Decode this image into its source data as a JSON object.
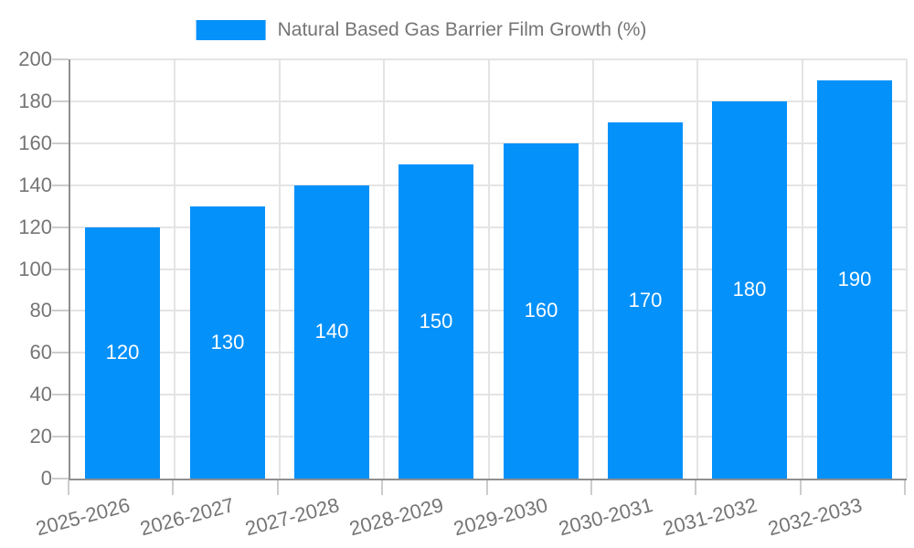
{
  "chart_data": {
    "type": "bar",
    "title": "Natural Based Gas Barrier Film Growth (%)",
    "categories": [
      "2025-2026",
      "2026-2027",
      "2027-2028",
      "2028-2029",
      "2029-2030",
      "2030-2031",
      "2031-2032",
      "2032-2033"
    ],
    "values": [
      120,
      130,
      140,
      150,
      160,
      170,
      180,
      190
    ],
    "xlabel": "",
    "ylabel": "",
    "ylim": [
      0,
      200
    ],
    "ytick_step": 20,
    "ytick_labels": [
      "0",
      "20",
      "40",
      "60",
      "80",
      "100",
      "120",
      "140",
      "160",
      "180",
      "200"
    ],
    "grid": true,
    "legend_position": "top-center",
    "x_label_rotation_deg": -15,
    "colors": {
      "bar": "#0591fa",
      "value_label": "#ffffff",
      "tick_label": "#757575",
      "axis_line": "#8f8f8f",
      "gridline": "#e4e4e4",
      "tick_mark": "#cccccc",
      "background": "#ffffff"
    }
  }
}
